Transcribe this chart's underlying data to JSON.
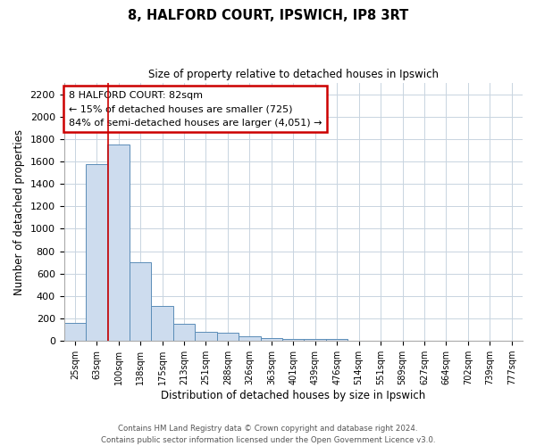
{
  "title": "8, HALFORD COURT, IPSWICH, IP8 3RT",
  "subtitle": "Size of property relative to detached houses in Ipswich",
  "xlabel": "Distribution of detached houses by size in Ipswich",
  "ylabel": "Number of detached properties",
  "bin_labels": [
    "25sqm",
    "63sqm",
    "100sqm",
    "138sqm",
    "175sqm",
    "213sqm",
    "251sqm",
    "288sqm",
    "326sqm",
    "363sqm",
    "401sqm",
    "439sqm",
    "476sqm",
    "514sqm",
    "551sqm",
    "589sqm",
    "627sqm",
    "664sqm",
    "702sqm",
    "739sqm",
    "777sqm"
  ],
  "bar_heights": [
    160,
    1580,
    1750,
    700,
    315,
    155,
    80,
    75,
    40,
    25,
    15,
    15,
    20,
    0,
    0,
    0,
    0,
    0,
    0,
    0,
    0
  ],
  "bar_color": "#cddcee",
  "bar_edge_color": "#5b8db8",
  "vline_x": 1,
  "vline_color": "#cc0000",
  "ylim": [
    0,
    2300
  ],
  "yticks": [
    0,
    200,
    400,
    600,
    800,
    1000,
    1200,
    1400,
    1600,
    1800,
    2000,
    2200
  ],
  "annotation_title": "8 HALFORD COURT: 82sqm",
  "annotation_line1": "← 15% of detached houses are smaller (725)",
  "annotation_line2": "84% of semi-detached houses are larger (4,051) →",
  "annotation_box_color": "#ffffff",
  "annotation_box_edge": "#cc0000",
  "footer_line1": "Contains HM Land Registry data © Crown copyright and database right 2024.",
  "footer_line2": "Contains public sector information licensed under the Open Government Licence v3.0.",
  "background_color": "#ffffff",
  "grid_color": "#c8d4e0"
}
